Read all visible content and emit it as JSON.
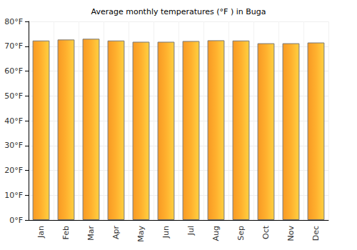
{
  "chart_data": {
    "type": "bar",
    "title": "Average monthly temperatures (°F ) in Buga",
    "categories": [
      "Jan",
      "Feb",
      "Mar",
      "Apr",
      "May",
      "Jun",
      "Jul",
      "Aug",
      "Sep",
      "Oct",
      "Nov",
      "Dec"
    ],
    "values": [
      72.3,
      72.7,
      73.0,
      72.3,
      71.8,
      71.8,
      72.1,
      72.4,
      72.3,
      71.2,
      71.2,
      71.5
    ],
    "color": "#ffb02e",
    "ylim": [
      0,
      80
    ],
    "yticks": [
      {
        "value": 0,
        "label": "0°F"
      },
      {
        "value": 10,
        "label": "10°F"
      },
      {
        "value": 20,
        "label": "20°F"
      },
      {
        "value": 30,
        "label": "30°F"
      },
      {
        "value": 40,
        "label": "40°F"
      },
      {
        "value": 50,
        "label": "50°F"
      },
      {
        "value": 60,
        "label": "60°F"
      },
      {
        "value": 70,
        "label": "70°F"
      },
      {
        "value": 80,
        "label": "80°F"
      }
    ],
    "grid": true
  }
}
